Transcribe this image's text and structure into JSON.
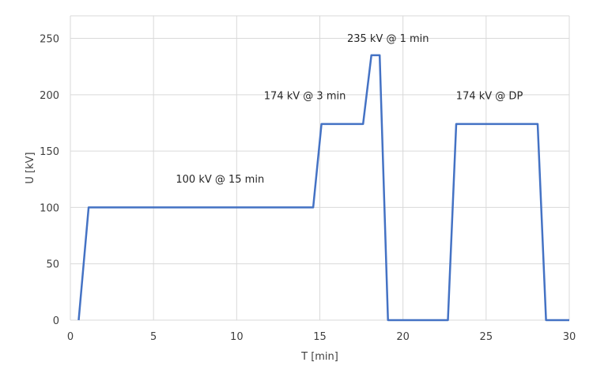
{
  "chart_data": {
    "type": "line",
    "xlabel": "T [min]",
    "ylabel": "U [kV]",
    "xlim": [
      0,
      30
    ],
    "ylim": [
      0,
      250
    ],
    "x_ticks": [
      0,
      5,
      10,
      15,
      20,
      25,
      30
    ],
    "y_ticks": [
      0,
      50,
      100,
      150,
      200,
      250
    ],
    "grid": true,
    "series": [
      {
        "color": "#4472c4",
        "x": [
          0.5,
          1.1,
          14.6,
          15.1,
          17.6,
          18.1,
          18.6,
          19.1,
          22.7,
          23.2,
          28.1,
          28.6,
          30
        ],
        "y": [
          0,
          100,
          100,
          174,
          174,
          235,
          235,
          0,
          0,
          174,
          174,
          0,
          0
        ]
      }
    ],
    "annotations": [
      {
        "text": "100 kV @ 15 min",
        "x": 9.0,
        "y": 122
      },
      {
        "text": "174 kV @ 3 min",
        "x": 14.1,
        "y": 196
      },
      {
        "text": "235 kV @ 1 min",
        "x": 19.1,
        "y": 247
      },
      {
        "text": "174 kV @ DP",
        "x": 25.2,
        "y": 196
      }
    ]
  }
}
